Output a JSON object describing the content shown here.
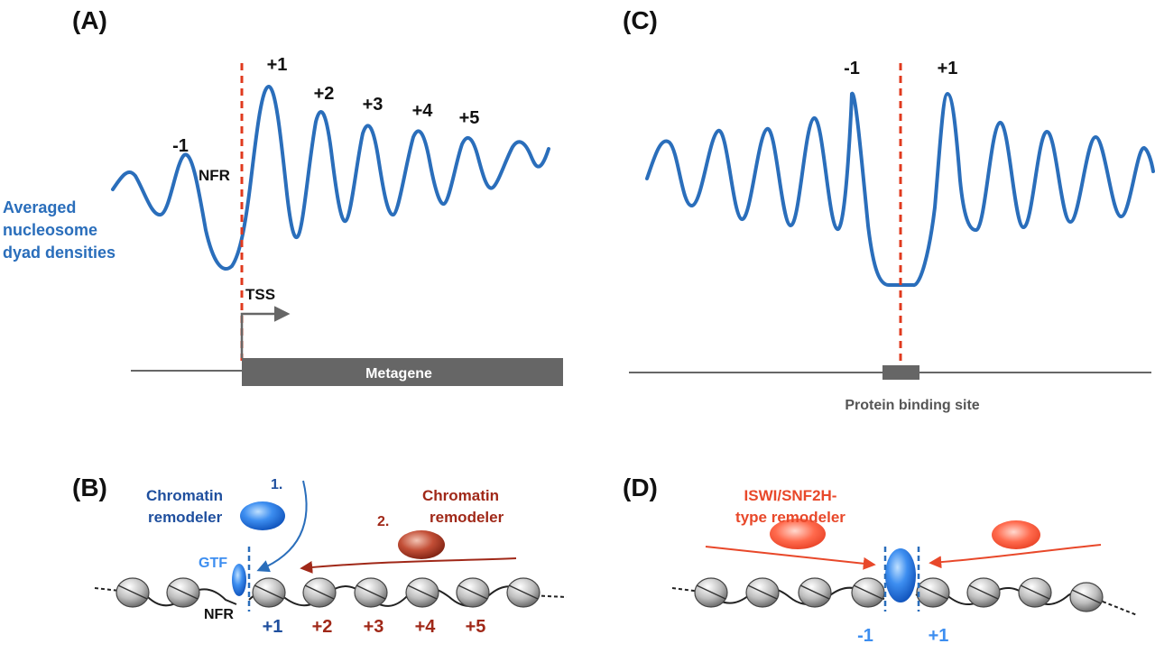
{
  "panel_a": {
    "letter": "(A)",
    "y_label_lines": [
      "Averaged",
      "nucleosome",
      "dyad densities"
    ],
    "nfr_label": "NFR",
    "tss_label": "TSS",
    "metagene_label": "Metagene",
    "peaks": [
      "-1",
      "+1",
      "+2",
      "+3",
      "+4",
      "+5"
    ]
  },
  "panel_b": {
    "letter": "(B)",
    "remodeler1_lines": [
      "Chromatin",
      "remodeler"
    ],
    "step1": "1.",
    "remodeler2_lines": [
      "Chromatin",
      "remodeler"
    ],
    "step2": "2.",
    "gtf_label": "GTF",
    "nfr_label": "NFR",
    "positions": [
      "+1",
      "+2",
      "+3",
      "+4",
      "+5"
    ]
  },
  "panel_c": {
    "letter": "(C)",
    "peaks": [
      "-1",
      "+1"
    ],
    "binding_site_label": "Protein binding site"
  },
  "panel_d": {
    "letter": "(D)",
    "remodeler_lines": [
      "ISWI/SNF2H-",
      "type remodeler"
    ],
    "positions": [
      "-1",
      "+1"
    ]
  },
  "colors": {
    "blue": "#2a6ebb",
    "dark_blue": "#1f4f9e",
    "red_dash": "#e03a1e",
    "dark_red": "#a02818",
    "orange_red": "#e8482a",
    "gray": "#666666",
    "dark_gray": "#555555"
  }
}
